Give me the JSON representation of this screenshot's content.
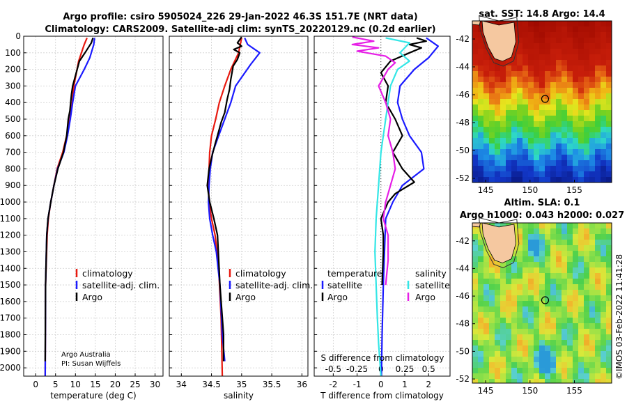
{
  "title_line1": "Argo profile: csiro 5905024_226 29-Jan-2022 46.3S 151.7E (NRT data)",
  "title_line2": "Climatology: CARS2009. Satellite-adj clim: synTS_20220129.nc (0.2d earlier)",
  "credit_line1": "Argo Australia",
  "credit_line2": "PI: Susan Wijffels",
  "timestamp": "©IMOS 03-Feb-2022 11:41:28",
  "colors": {
    "climatology": "#e8190f",
    "satellite": "#1a1aff",
    "argo": "#000000",
    "sat_cyan": "#33e6e6",
    "argo_magenta": "#e61ee6"
  },
  "maps": {
    "sst_title": "sat. SST: 14.8 Argo: 14.4",
    "sla_title1": "Altim. SLA: 0.1",
    "sla_title2": "Argo h1000: 0.043 h2000: 0.027",
    "lat_ticks": [
      -42,
      -44,
      -46,
      -48,
      -50,
      -52
    ],
    "lon_ticks": [
      145,
      150,
      155
    ],
    "lat_range": [
      -52.3,
      -40.7
    ],
    "lon_range": [
      143.5,
      159.2
    ],
    "argo_position": {
      "lat": -46.3,
      "lon": 151.7
    }
  },
  "chart_data": [
    {
      "type": "line",
      "xlabel": "temperature (deg C)",
      "ylabel": "",
      "xlim": [
        -3,
        32
      ],
      "ylim": [
        2050,
        0
      ],
      "xticks": [
        0,
        5,
        10,
        15,
        20,
        25,
        30
      ],
      "yticks": [
        0,
        100,
        200,
        300,
        400,
        500,
        600,
        700,
        800,
        900,
        1000,
        1100,
        1200,
        1300,
        1400,
        1500,
        1600,
        1700,
        1800,
        1900,
        2000
      ],
      "legend": [
        "climatology",
        "satellite-adj. clim.",
        "Argo"
      ],
      "series": [
        {
          "name": "climatology",
          "x": [
            12.9,
            12.2,
            10.8,
            9.6,
            9.2,
            8.6,
            7.8,
            6.8,
            5.4,
            4.6,
            3.8,
            3.2,
            2.9,
            2.5,
            2.4
          ],
          "depth": [
            10,
            50,
            150,
            300,
            400,
            500,
            600,
            700,
            800,
            900,
            1000,
            1100,
            1200,
            1500,
            2050
          ]
        },
        {
          "name": "satellite-adj. clim.",
          "x": [
            14.8,
            14.6,
            13.6,
            12.2,
            10.0,
            9.3,
            8.7,
            8.0,
            7.1,
            5.5,
            4.6,
            3.8,
            3.1,
            2.8,
            2.5,
            2.4
          ],
          "depth": [
            10,
            50,
            130,
            200,
            300,
            400,
            500,
            600,
            700,
            800,
            900,
            1000,
            1100,
            1200,
            1500,
            2050
          ]
        },
        {
          "name": "Argo",
          "x": [
            14.4,
            14.0,
            12.4,
            11.0,
            9.3,
            9.0,
            8.6,
            8.2,
            7.8,
            7.0,
            5.6,
            4.6,
            3.8,
            3.1,
            2.8,
            2.5,
            2.4
          ],
          "depth": [
            10,
            40,
            100,
            150,
            300,
            350,
            450,
            500,
            600,
            700,
            800,
            900,
            1000,
            1100,
            1200,
            1500,
            1960
          ]
        }
      ]
    },
    {
      "type": "line",
      "xlabel": "salinity",
      "ylabel": "",
      "xlim": [
        33.8,
        36.1
      ],
      "ylim": [
        2050,
        0
      ],
      "xticks": [
        34,
        34.5,
        35,
        35.5,
        36
      ],
      "yticks": [
        0,
        100,
        200,
        300,
        400,
        500,
        600,
        700,
        800,
        900,
        1000,
        1100,
        1200,
        1300,
        1400,
        1500,
        1600,
        1700,
        1800,
        1900,
        2000
      ],
      "legend": [
        "climatology",
        "satellite-adj. clim.",
        "Argo"
      ],
      "series": [
        {
          "name": "climatology",
          "x": [
            35.0,
            34.95,
            34.82,
            34.72,
            34.63,
            34.57,
            34.5,
            34.47,
            34.46,
            34.45,
            34.46,
            34.5,
            34.56,
            34.62,
            34.66,
            34.68
          ],
          "depth": [
            10,
            100,
            200,
            300,
            400,
            500,
            600,
            700,
            800,
            900,
            1000,
            1100,
            1200,
            1400,
            1700,
            2050
          ]
        },
        {
          "name": "satellite-adj. clim.",
          "x": [
            35.05,
            35.1,
            35.3,
            35.15,
            34.9,
            34.82,
            34.72,
            34.62,
            34.52,
            34.48,
            34.46,
            34.45,
            34.47,
            34.52,
            34.58,
            34.64,
            34.68,
            34.72
          ],
          "depth": [
            10,
            50,
            100,
            170,
            300,
            400,
            500,
            600,
            700,
            800,
            900,
            1000,
            1100,
            1200,
            1300,
            1500,
            1800,
            1960
          ]
        },
        {
          "name": "Argo",
          "x": [
            35.0,
            34.93,
            35.0,
            34.87,
            34.97,
            34.93,
            34.86,
            34.82,
            34.8,
            34.76,
            34.72,
            34.66,
            34.6,
            34.56,
            34.51,
            34.46,
            34.43,
            34.47,
            34.54,
            34.6,
            34.64,
            34.7,
            34.7
          ],
          "depth": [
            5,
            40,
            60,
            80,
            100,
            140,
            180,
            260,
            320,
            380,
            460,
            520,
            600,
            650,
            720,
            800,
            900,
            1000,
            1100,
            1200,
            1500,
            1800,
            1960
          ]
        }
      ]
    },
    {
      "type": "line",
      "xlabel": "T difference from climatology",
      "ylabel": "",
      "top_axis_label": "S difference from climatology",
      "xlim": [
        -2.8,
        2.9
      ],
      "ylim": [
        2050,
        0
      ],
      "xticks": [
        -2,
        -1,
        0,
        1,
        2
      ],
      "top_ticks": [
        "-0.5",
        "-0.25",
        "0",
        "0.25",
        "0.5"
      ],
      "top_tick_positions": [
        -2,
        -1,
        0,
        1,
        2
      ],
      "yticks": [
        0,
        100,
        200,
        300,
        400,
        500,
        600,
        700,
        800,
        900,
        1000,
        1100,
        1200,
        1300,
        1400,
        1500,
        1600,
        1700,
        1800,
        1900,
        2000
      ],
      "legend_temperature": [
        "temperature",
        "satellite",
        "Argo"
      ],
      "legend_salinity": [
        "salinity",
        "satellite",
        "Argo"
      ],
      "series": [
        {
          "name": "temperature satellite",
          "x": [
            1.9,
            2.4,
            2.0,
            1.4,
            0.8,
            0.7,
            0.9,
            1.2,
            1.7,
            1.8,
            0.9,
            0.5,
            0.2,
            0.15,
            0.1,
            0.05,
            0.02
          ],
          "depth": [
            10,
            60,
            130,
            200,
            300,
            400,
            500,
            600,
            700,
            800,
            900,
            1000,
            1100,
            1300,
            1500,
            1800,
            2050
          ]
        },
        {
          "name": "temperature Argo",
          "x": [
            1.5,
            1.9,
            1.2,
            1.7,
            1.2,
            0.4,
            0.0,
            0.3,
            0.2,
            0.6,
            0.9,
            0.5,
            0.9,
            1.4,
            0.6,
            0.3,
            0.0,
            0.1,
            0.1,
            0.05
          ],
          "depth": [
            10,
            30,
            50,
            70,
            100,
            150,
            220,
            300,
            400,
            500,
            600,
            700,
            800,
            880,
            950,
            1000,
            1100,
            1200,
            1300,
            1500
          ]
        },
        {
          "name": "salinity satellite",
          "x": [
            0.2,
            1.2,
            0.8,
            1.2,
            0.7,
            0.4,
            0.2,
            0.0,
            -0.1,
            -0.2,
            -0.25,
            -0.2,
            -0.15,
            -0.1,
            0.0
          ],
          "depth": [
            10,
            40,
            100,
            150,
            200,
            300,
            500,
            700,
            900,
            1100,
            1300,
            1500,
            1700,
            1850,
            2050
          ]
        },
        {
          "name": "salinity Argo",
          "x": [
            -1.2,
            -0.3,
            -1.2,
            -0.1,
            -1.0,
            0.2,
            0.6,
            0.3,
            -0.1,
            0.2,
            0.4,
            0.3,
            0.5,
            0.6,
            0.4,
            0.2,
            0.1,
            0.3,
            0.3,
            0.2
          ],
          "depth": [
            5,
            30,
            50,
            70,
            90,
            120,
            160,
            200,
            300,
            400,
            500,
            600,
            700,
            800,
            900,
            1000,
            1100,
            1200,
            1350,
            1500
          ]
        }
      ]
    }
  ]
}
